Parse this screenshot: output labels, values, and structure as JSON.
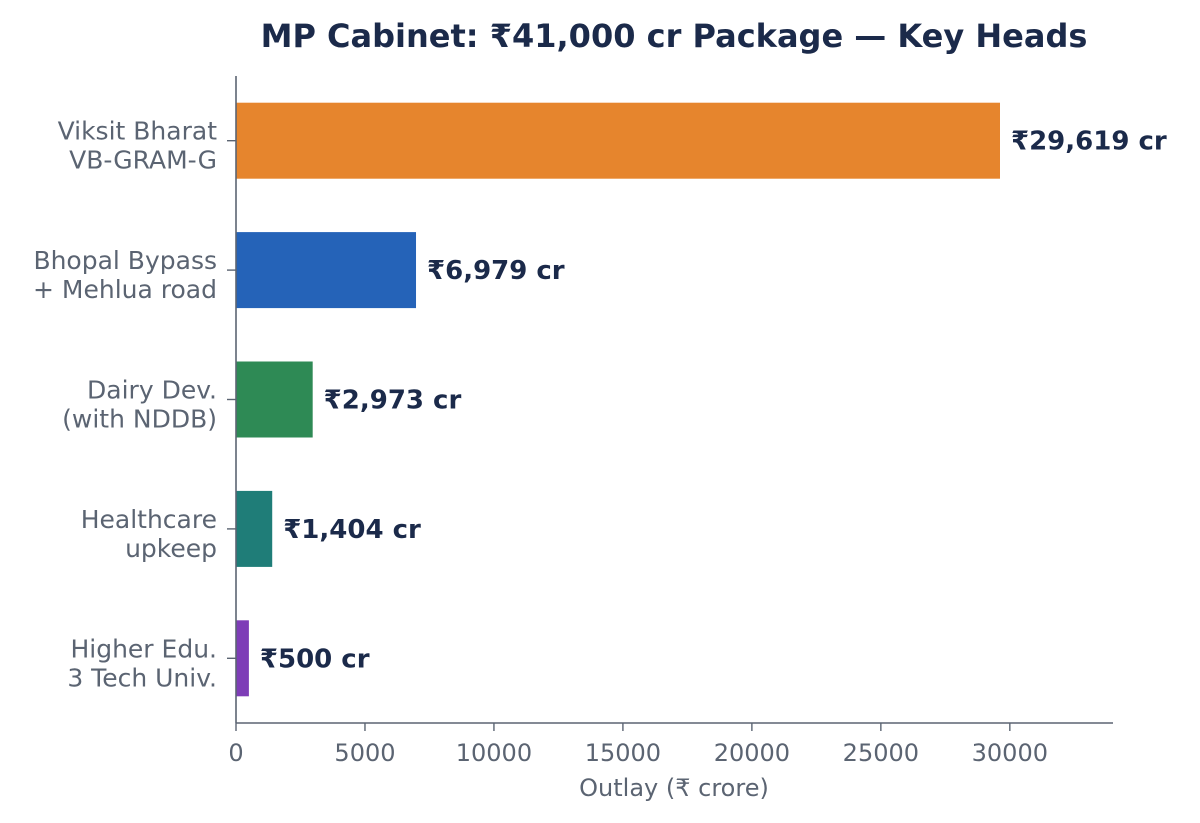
{
  "chart_data": {
    "type": "bar",
    "orientation": "horizontal",
    "title": "MP Cabinet: ₹41,000 cr Package — Key Heads",
    "xlabel": "Outlay (₹ crore)",
    "ylabel": "",
    "xlim": [
      0,
      34000
    ],
    "xticks": [
      0,
      5000,
      10000,
      15000,
      20000,
      25000,
      30000
    ],
    "grid": false,
    "categories": [
      [
        "Viksit Bharat",
        "VB-GRAM-G"
      ],
      [
        "Bhopal Bypass",
        "+ Mehlua road"
      ],
      [
        "Dairy Dev.",
        "(with NDDB)"
      ],
      [
        "Healthcare",
        "upkeep"
      ],
      [
        "Higher Edu.",
        "3 Tech Univ."
      ]
    ],
    "values": [
      29619,
      6979,
      2973,
      1404,
      500
    ],
    "data_labels": [
      "₹29,619 cr",
      "₹6,979 cr",
      "₹2,973 cr",
      "₹1,404 cr",
      "₹500 cr"
    ],
    "colors": [
      "#e6852d",
      "#2563b8",
      "#2e8a55",
      "#1f7d78",
      "#7e3db7"
    ]
  }
}
